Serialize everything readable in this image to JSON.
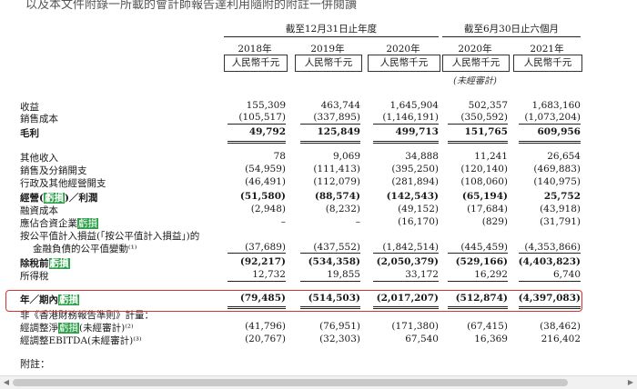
{
  "intro": "以及本文件附錄一所載的會計師報告達利用隨附的附註一併閱讀",
  "periods": {
    "annual": "截至12月31日止年度",
    "interim": "截至6月30日止六個月"
  },
  "columns": [
    {
      "year": "2018年",
      "unit": "人民幣千元",
      "note": ""
    },
    {
      "year": "2019年",
      "unit": "人民幣千元",
      "note": ""
    },
    {
      "year": "2020年",
      "unit": "人民幣千元",
      "note": ""
    },
    {
      "year": "2020年",
      "unit": "人民幣千元",
      "note": "(未經審計)"
    },
    {
      "year": "2021年",
      "unit": "人民幣千元",
      "note": ""
    }
  ],
  "rows": [
    {
      "label": "收益",
      "values": [
        "155,309",
        "463,744",
        "1,645,904",
        "502,357",
        "1,683,160"
      ]
    },
    {
      "label": "銷售成本",
      "values": [
        "(105,517)",
        "(337,895)",
        "(1,146,191)",
        "(350,592)",
        "(1,073,204)"
      ]
    },
    {
      "label": "毛利",
      "values": [
        "49,792",
        "125,849",
        "499,713",
        "151,765",
        "609,956"
      ]
    },
    {
      "label": "其他收入",
      "values": [
        "78",
        "9,069",
        "34,888",
        "11,241",
        "26,654"
      ]
    },
    {
      "label": "銷售及分銷開支",
      "values": [
        "(54,959)",
        "(111,413)",
        "(395,250)",
        "(120,140)",
        "(469,883)"
      ]
    },
    {
      "label": "行政及其他經營開支",
      "values": [
        "(46,491)",
        "(112,079)",
        "(281,894)",
        "(108,060)",
        "(140,975)"
      ]
    },
    {
      "label_pre": "經營(",
      "label_hl": "虧損",
      "label_post": ")／利潤",
      "values": [
        "(51,580)",
        "(88,574)",
        "(142,543)",
        "(65,194)",
        "25,752"
      ]
    },
    {
      "label": "融資成本",
      "values": [
        "(2,948)",
        "(8,232)",
        "(49,152)",
        "(17,684)",
        "(43,918)"
      ]
    },
    {
      "label_pre": "應佔合資企業",
      "label_hl": "虧損",
      "label_post": "",
      "values": [
        "–",
        "–",
        "(16,170)",
        "(829)",
        "(31,791)"
      ]
    },
    {
      "label": "按公平值計入損益(「按公平值計入損益」)的",
      "values": [
        "",
        "",
        "",
        "",
        ""
      ]
    },
    {
      "label": "金融負債的公平值變動⁽¹⁾",
      "values": [
        "(37,689)",
        "(437,552)",
        "(1,842,514)",
        "(445,459)",
        "(4,353,866)"
      ]
    },
    {
      "label_pre": "除稅前",
      "label_hl": "虧損",
      "label_post": "",
      "values": [
        "(92,217)",
        "(534,358)",
        "(2,050,379)",
        "(529,166)",
        "(4,403,823)"
      ]
    },
    {
      "label": "所得稅",
      "values": [
        "12,732",
        "19,855",
        "33,172",
        "16,292",
        "6,740"
      ]
    },
    {
      "label_pre": "年／期內",
      "label_hl": "虧損",
      "label_post": "",
      "values": [
        "(79,485)",
        "(514,503)",
        "(2,017,207)",
        "(512,874)",
        "(4,397,083)"
      ]
    },
    {
      "label": "非《香港財務報告準則》計量：",
      "values": [
        "",
        "",
        "",
        "",
        ""
      ]
    },
    {
      "label_pre": "經調整淨",
      "label_hl": "虧損",
      "label_post": "(未經審計)⁽²⁾",
      "values": [
        "(41,796)",
        "(76,951)",
        "(171,380)",
        "(67,415)",
        "(38,462)"
      ]
    },
    {
      "label": "經調整EBITDA(未經審計)⁽³⁾",
      "values": [
        "(20,767)",
        "(32,303)",
        "67,540",
        "16,369",
        "216,402"
      ]
    }
  ],
  "footnote": "附註：",
  "colors": {
    "highlight": "#2ea04a",
    "box": "#d93030"
  }
}
